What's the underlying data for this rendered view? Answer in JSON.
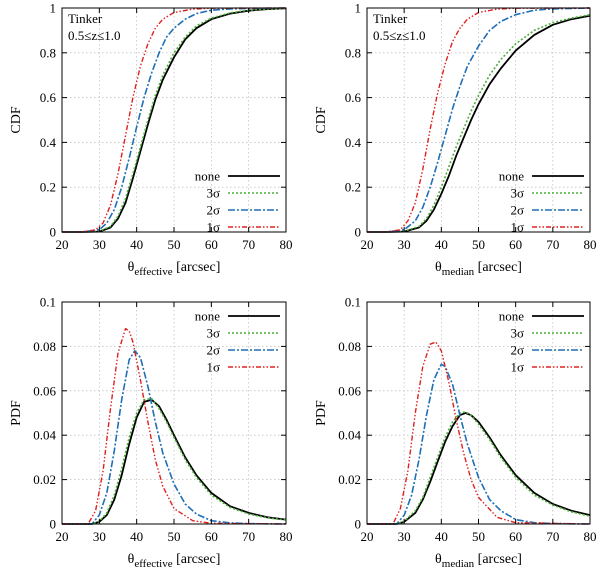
{
  "chart_data": [
    {
      "type": "line",
      "id": "cdf-effective",
      "annotation": [
        "Tinker",
        "0.5≤z≤1.0"
      ],
      "ylabel": "CDF",
      "xlabel_main": "θ",
      "xlabel_sub": "effective",
      "xlabel_unit": "[arcsec]",
      "xlim": [
        20,
        80
      ],
      "ylim": [
        0,
        1
      ],
      "xticks": [
        20,
        30,
        40,
        50,
        60,
        70,
        80
      ],
      "yticks": [
        0,
        0.2,
        0.4,
        0.6,
        0.8,
        1
      ],
      "ytick_labels": [
        "0",
        "0.2",
        "0.4",
        "0.6",
        "0.8",
        "1"
      ],
      "legend": [
        "none",
        "3σ",
        "2σ",
        "1σ"
      ],
      "series": [
        {
          "name": "none",
          "x": [
            20,
            25,
            30,
            33,
            35,
            37,
            39,
            41,
            43,
            45,
            47,
            50,
            53,
            56,
            60,
            65,
            70,
            75,
            80
          ],
          "y": [
            0,
            0,
            0.002,
            0.02,
            0.06,
            0.13,
            0.24,
            0.36,
            0.48,
            0.59,
            0.68,
            0.78,
            0.86,
            0.91,
            0.95,
            0.975,
            0.988,
            0.995,
            0.998
          ]
        },
        {
          "name": "3σ",
          "x": [
            20,
            25,
            30,
            33,
            35,
            37,
            39,
            41,
            43,
            45,
            47,
            50,
            53,
            56,
            60,
            65,
            70,
            75,
            80
          ],
          "y": [
            0,
            0,
            0.003,
            0.025,
            0.07,
            0.15,
            0.26,
            0.38,
            0.5,
            0.61,
            0.7,
            0.8,
            0.87,
            0.92,
            0.955,
            0.978,
            0.99,
            0.996,
            0.998
          ]
        },
        {
          "name": "2σ",
          "x": [
            20,
            25,
            30,
            32,
            34,
            36,
            38,
            40,
            42,
            44,
            46,
            48,
            50,
            53,
            56,
            60,
            65,
            70,
            80
          ],
          "y": [
            0,
            0,
            0.01,
            0.04,
            0.1,
            0.2,
            0.33,
            0.47,
            0.6,
            0.71,
            0.8,
            0.87,
            0.91,
            0.95,
            0.975,
            0.99,
            0.996,
            0.998,
            1
          ]
        },
        {
          "name": "1σ",
          "x": [
            20,
            25,
            29,
            31,
            33,
            35,
            37,
            39,
            41,
            43,
            45,
            47,
            50,
            55,
            60,
            80
          ],
          "y": [
            0,
            0,
            0.01,
            0.04,
            0.12,
            0.26,
            0.43,
            0.6,
            0.74,
            0.84,
            0.91,
            0.95,
            0.98,
            0.995,
            0.999,
            1
          ]
        }
      ]
    },
    {
      "type": "line",
      "id": "cdf-median",
      "annotation": [
        "Tinker",
        "0.5≤z≤1.0"
      ],
      "ylabel": "CDF",
      "xlabel_main": "θ",
      "xlabel_sub": "median",
      "xlabel_unit": "[arcsec]",
      "xlim": [
        20,
        80
      ],
      "ylim": [
        0,
        1
      ],
      "xticks": [
        20,
        30,
        40,
        50,
        60,
        70,
        80
      ],
      "yticks": [
        0,
        0.2,
        0.4,
        0.6,
        0.8,
        1
      ],
      "ytick_labels": [
        "0",
        "0.2",
        "0.4",
        "0.6",
        "0.8",
        "1"
      ],
      "legend": [
        "none",
        "3σ",
        "2σ",
        "1σ"
      ],
      "series": [
        {
          "name": "none",
          "x": [
            20,
            25,
            30,
            34,
            36,
            38,
            40,
            42,
            44,
            46,
            48,
            50,
            53,
            56,
            60,
            65,
            70,
            75,
            80
          ],
          "y": [
            0,
            0,
            0.002,
            0.02,
            0.05,
            0.1,
            0.17,
            0.25,
            0.34,
            0.42,
            0.5,
            0.57,
            0.66,
            0.73,
            0.81,
            0.88,
            0.925,
            0.95,
            0.965
          ]
        },
        {
          "name": "3σ",
          "x": [
            20,
            25,
            30,
            34,
            36,
            38,
            40,
            42,
            44,
            46,
            48,
            50,
            53,
            56,
            60,
            65,
            70,
            75,
            80
          ],
          "y": [
            0,
            0,
            0.003,
            0.025,
            0.06,
            0.12,
            0.2,
            0.29,
            0.38,
            0.46,
            0.54,
            0.61,
            0.7,
            0.77,
            0.84,
            0.9,
            0.935,
            0.955,
            0.97
          ]
        },
        {
          "name": "2σ",
          "x": [
            20,
            25,
            30,
            33,
            35,
            37,
            39,
            41,
            43,
            45,
            47,
            50,
            53,
            56,
            60,
            65,
            70,
            80
          ],
          "y": [
            0,
            0,
            0.01,
            0.05,
            0.11,
            0.2,
            0.31,
            0.43,
            0.55,
            0.65,
            0.74,
            0.83,
            0.9,
            0.94,
            0.97,
            0.99,
            0.996,
            1
          ]
        },
        {
          "name": "1σ",
          "x": [
            20,
            25,
            29,
            31,
            33,
            35,
            37,
            39,
            41,
            43,
            45,
            47,
            50,
            55,
            60,
            80
          ],
          "y": [
            0,
            0,
            0.01,
            0.05,
            0.13,
            0.28,
            0.46,
            0.62,
            0.75,
            0.85,
            0.91,
            0.95,
            0.98,
            0.995,
            0.999,
            1
          ]
        }
      ]
    },
    {
      "type": "line",
      "id": "pdf-effective",
      "annotation": [],
      "ylabel": "PDF",
      "xlabel_main": "θ",
      "xlabel_sub": "effective",
      "xlabel_unit": "[arcsec]",
      "xlim": [
        20,
        80
      ],
      "ylim": [
        0,
        0.1
      ],
      "xticks": [
        20,
        30,
        40,
        50,
        60,
        70,
        80
      ],
      "yticks": [
        0,
        0.02,
        0.04,
        0.06,
        0.08,
        0.1
      ],
      "ytick_labels": [
        "0",
        "0.02",
        "0.04",
        "0.06",
        "0.08",
        "0.1"
      ],
      "legend": [
        "none",
        "3σ",
        "2σ",
        "1σ"
      ],
      "series": [
        {
          "name": "none",
          "x": [
            20,
            28,
            30,
            32,
            34,
            36,
            38,
            40,
            42,
            44,
            46,
            48,
            50,
            53,
            56,
            60,
            65,
            70,
            75,
            80
          ],
          "y": [
            0,
            0,
            0.001,
            0.004,
            0.011,
            0.022,
            0.036,
            0.048,
            0.055,
            0.056,
            0.053,
            0.047,
            0.04,
            0.03,
            0.022,
            0.014,
            0.008,
            0.005,
            0.003,
            0.002
          ]
        },
        {
          "name": "3σ",
          "x": [
            20,
            28,
            30,
            32,
            34,
            36,
            38,
            40,
            42,
            44,
            46,
            48,
            50,
            53,
            56,
            60,
            65,
            70,
            75,
            80
          ],
          "y": [
            0,
            0,
            0.0012,
            0.005,
            0.013,
            0.025,
            0.039,
            0.05,
            0.056,
            0.0565,
            0.052,
            0.046,
            0.039,
            0.029,
            0.021,
            0.013,
            0.0075,
            0.0045,
            0.0028,
            0.0018
          ]
        },
        {
          "name": "2σ",
          "x": [
            20,
            28,
            30,
            32,
            34,
            36,
            38,
            39.5,
            41,
            43,
            45,
            47,
            50,
            53,
            56,
            60,
            65,
            70,
            80
          ],
          "y": [
            0,
            0,
            0.004,
            0.014,
            0.033,
            0.056,
            0.074,
            0.078,
            0.075,
            0.062,
            0.046,
            0.032,
            0.018,
            0.009,
            0.0045,
            0.0015,
            0.0005,
            0.0002,
            0
          ]
        },
        {
          "name": "1σ",
          "x": [
            20,
            27,
            29,
            31,
            33,
            35,
            37,
            38,
            39,
            41,
            43,
            45,
            47,
            50,
            55,
            60,
            80
          ],
          "y": [
            0,
            0,
            0.006,
            0.024,
            0.052,
            0.077,
            0.088,
            0.087,
            0.082,
            0.065,
            0.046,
            0.029,
            0.017,
            0.007,
            0.0015,
            0.0003,
            0
          ]
        }
      ]
    },
    {
      "type": "line",
      "id": "pdf-median",
      "annotation": [],
      "ylabel": "PDF",
      "xlabel_main": "θ",
      "xlabel_sub": "median",
      "xlabel_unit": "[arcsec]",
      "xlim": [
        20,
        80
      ],
      "ylim": [
        0,
        0.1
      ],
      "xticks": [
        20,
        30,
        40,
        50,
        60,
        70,
        80
      ],
      "yticks": [
        0,
        0.02,
        0.04,
        0.06,
        0.08,
        0.1
      ],
      "ytick_labels": [
        "0",
        "0.02",
        "0.04",
        "0.06",
        "0.08",
        "0.1"
      ],
      "legend": [
        "none",
        "3σ",
        "2σ",
        "1σ"
      ],
      "series": [
        {
          "name": "none",
          "x": [
            20,
            28,
            30,
            33,
            35,
            37,
            39,
            41,
            43,
            45,
            46.5,
            48,
            50,
            53,
            56,
            60,
            65,
            70,
            75,
            80
          ],
          "y": [
            0,
            0,
            0.001,
            0.005,
            0.011,
            0.019,
            0.028,
            0.037,
            0.044,
            0.049,
            0.05,
            0.049,
            0.046,
            0.039,
            0.031,
            0.022,
            0.014,
            0.009,
            0.006,
            0.004
          ]
        },
        {
          "name": "3σ",
          "x": [
            20,
            28,
            30,
            33,
            35,
            37,
            39,
            41,
            43,
            45,
            46.5,
            48,
            50,
            53,
            56,
            60,
            65,
            70,
            75,
            80
          ],
          "y": [
            0,
            0,
            0.0012,
            0.006,
            0.012,
            0.021,
            0.03,
            0.039,
            0.046,
            0.05,
            0.0505,
            0.049,
            0.045,
            0.038,
            0.03,
            0.021,
            0.013,
            0.0085,
            0.0055,
            0.0035
          ]
        },
        {
          "name": "2σ",
          "x": [
            20,
            28,
            30,
            32,
            34,
            36,
            38,
            40,
            41,
            43,
            45,
            47,
            50,
            53,
            56,
            60,
            65,
            70,
            80
          ],
          "y": [
            0,
            0,
            0.004,
            0.013,
            0.029,
            0.049,
            0.065,
            0.072,
            0.071,
            0.063,
            0.049,
            0.036,
            0.021,
            0.011,
            0.006,
            0.002,
            0.0006,
            0.0002,
            0
          ]
        },
        {
          "name": "1σ",
          "x": [
            20,
            27,
            29,
            31,
            33,
            35,
            37,
            38.5,
            40,
            42,
            44,
            46,
            48,
            50,
            55,
            60,
            80
          ],
          "y": [
            0,
            0,
            0.007,
            0.024,
            0.05,
            0.071,
            0.081,
            0.082,
            0.078,
            0.064,
            0.047,
            0.032,
            0.02,
            0.012,
            0.003,
            0.0006,
            0
          ]
        }
      ]
    }
  ],
  "styles": {
    "none": {
      "color": "#000000",
      "dash": "",
      "width": 1.8
    },
    "3σ": {
      "color": "#4caf3a",
      "dash": "2,2",
      "width": 1.6
    },
    "2σ": {
      "color": "#1f6fb5",
      "dash": "7,2,2,2",
      "width": 1.6
    },
    "1σ": {
      "color": "#e02020",
      "dash": "5,2,1.5,2,1.5,2",
      "width": 1.4
    }
  }
}
